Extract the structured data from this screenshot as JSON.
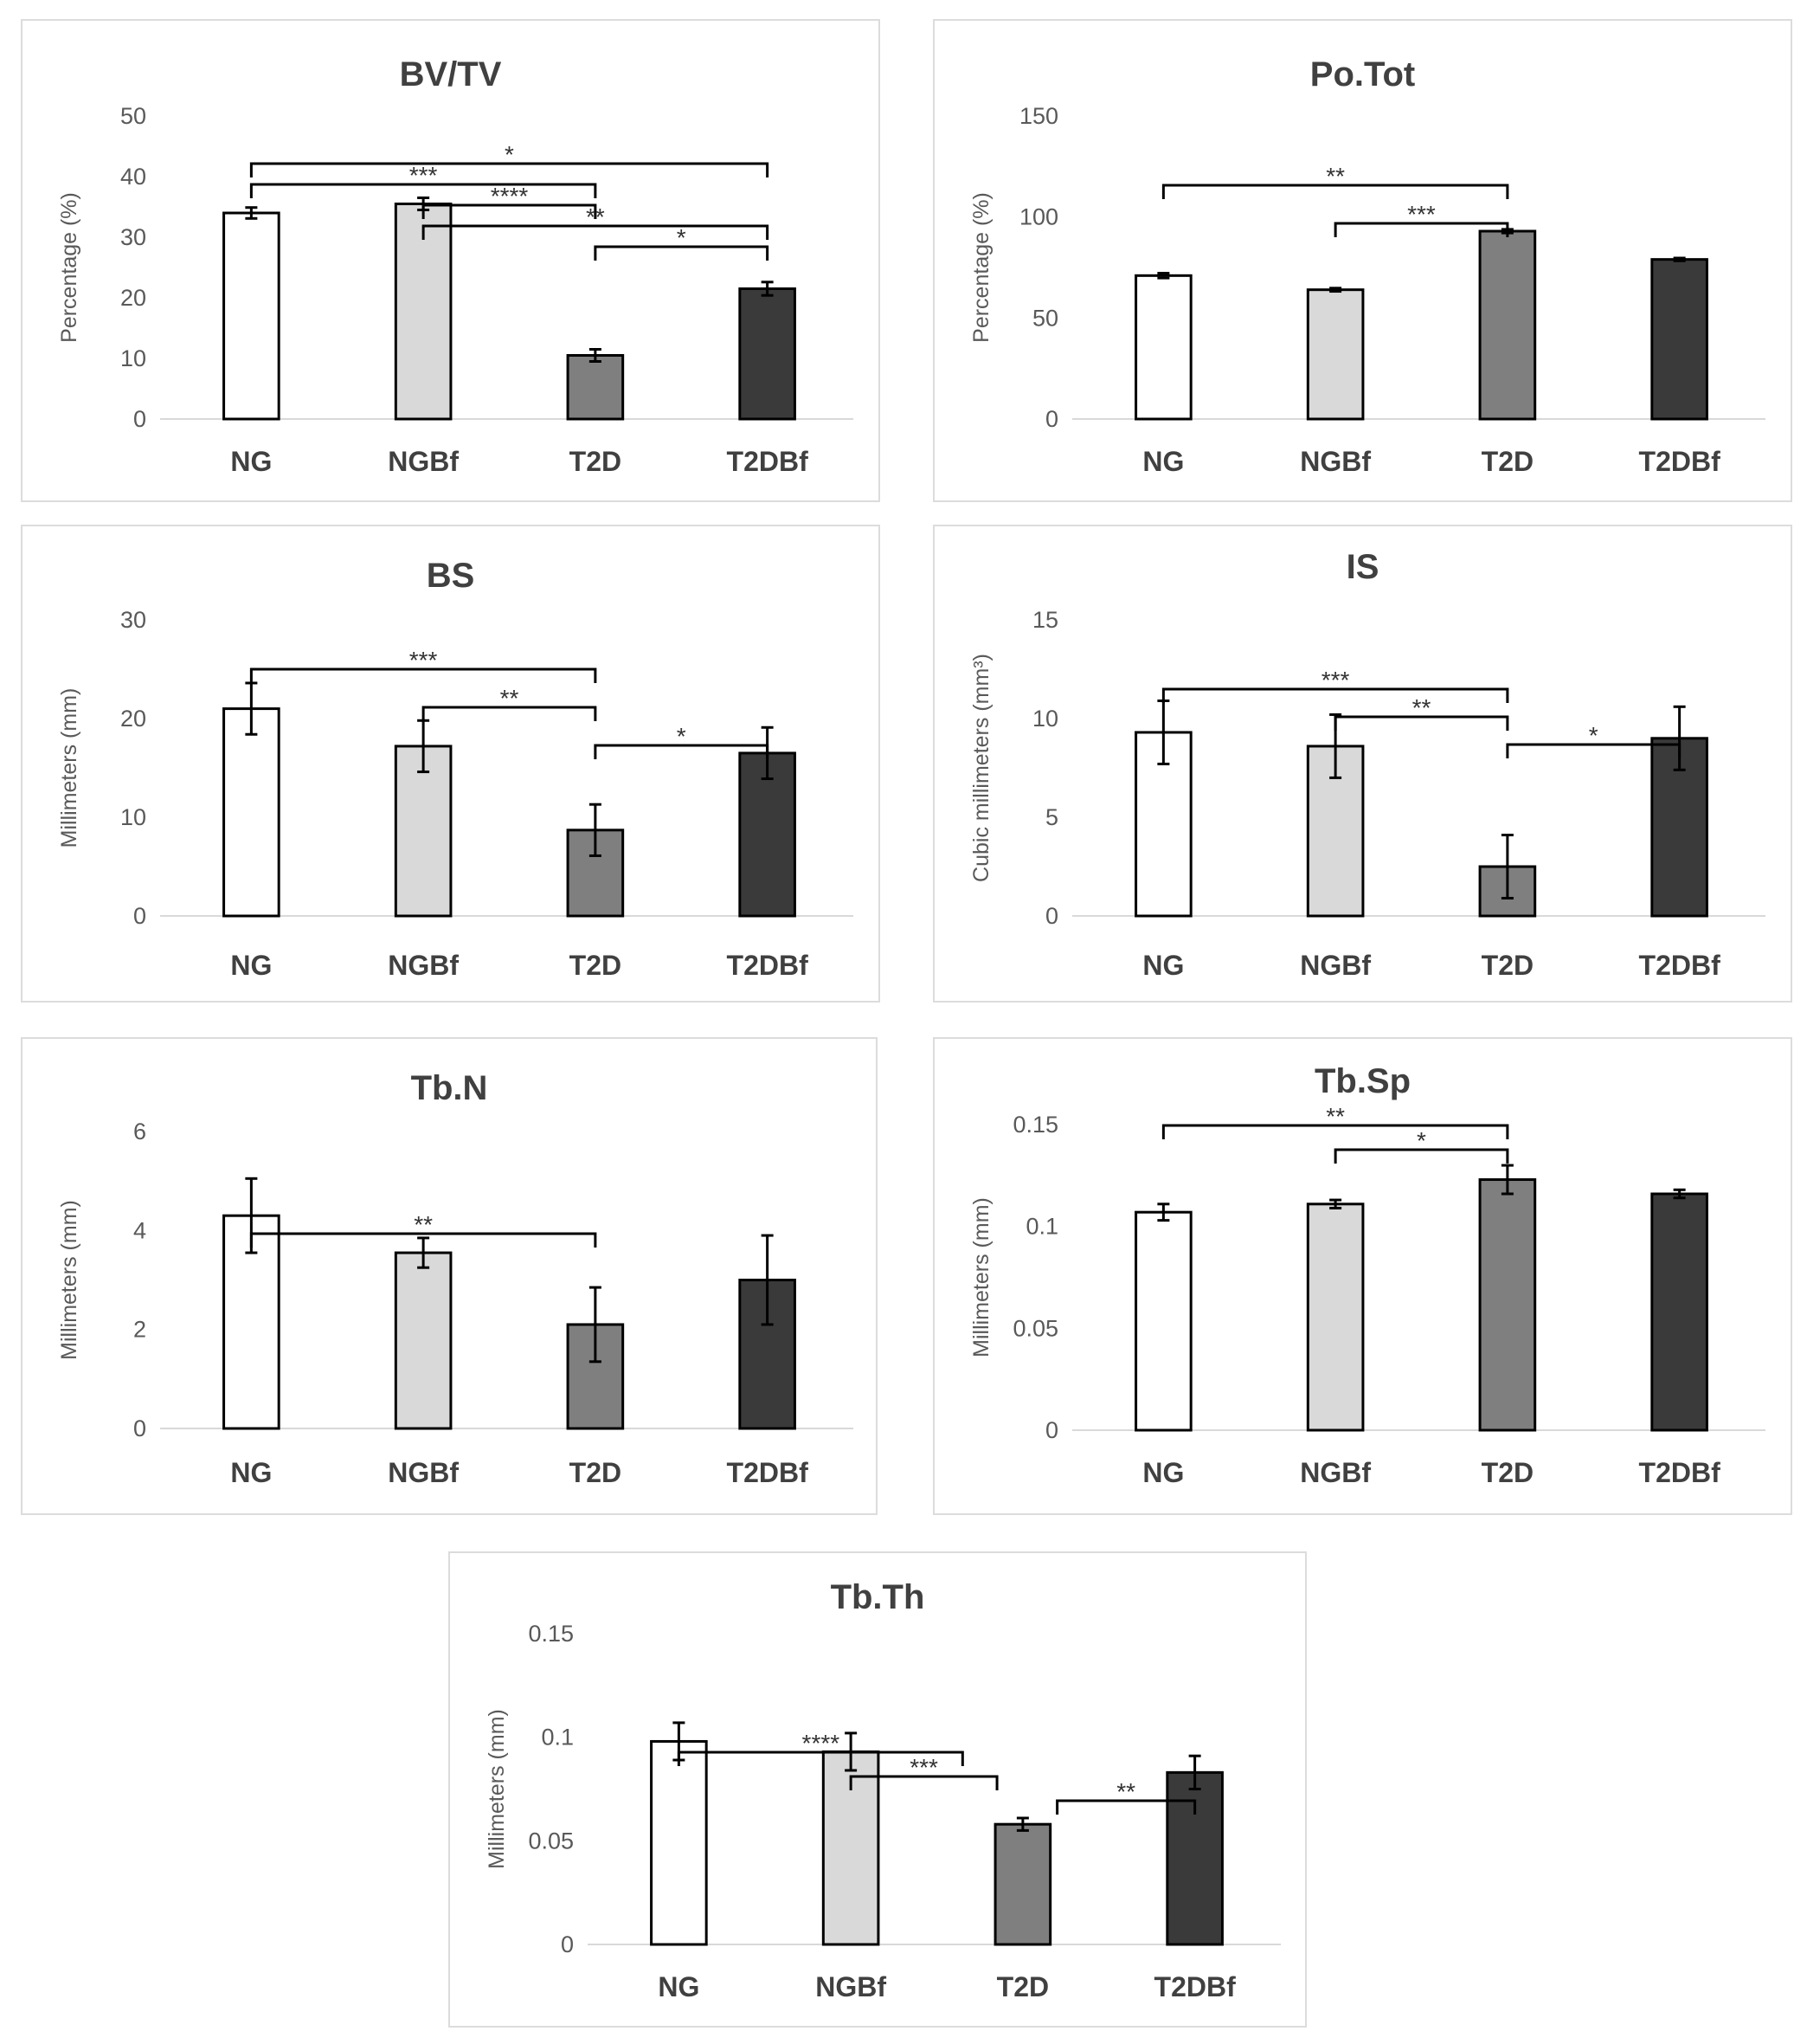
{
  "colors": {
    "NG": "#ffffff",
    "NGBf": "#d9d9d9",
    "T2D": "#7f7f7f",
    "T2DBf": "#3a3a3a",
    "axis": "#d9d9d9",
    "bar_edge": "#000000"
  },
  "chart_data": [
    {
      "type": "bar",
      "title": "BV/TV",
      "ylabel": "Percentage (%)",
      "categories": [
        "NG",
        "NGBf",
        "T2D",
        "T2DBf"
      ],
      "values": [
        34,
        35.5,
        10.5,
        21.5
      ],
      "errors": [
        0.9,
        1.0,
        1.0,
        1.1
      ],
      "ylim": [
        0,
        50
      ],
      "yticks": [
        "0",
        "10",
        "20",
        "30",
        "40",
        "50"
      ],
      "significance": [
        {
          "from": 0,
          "to": 3,
          "label": "*"
        },
        {
          "from": 0,
          "to": 2,
          "label": "***"
        },
        {
          "from": 1,
          "to": 2,
          "label": "****"
        },
        {
          "from": 1,
          "to": 3,
          "label": "**"
        },
        {
          "from": 2,
          "to": 3,
          "label": "*"
        }
      ]
    },
    {
      "type": "bar",
      "title": "Po.Tot",
      "ylabel": "Percentage (%)",
      "categories": [
        "NG",
        "NGBf",
        "T2D",
        "T2DBf"
      ],
      "values": [
        71,
        64,
        93,
        79
      ],
      "errors": [
        1.2,
        0.8,
        0.9,
        0.7
      ],
      "ylim": [
        0,
        150
      ],
      "yticks": [
        "0",
        "50",
        "100",
        "150"
      ],
      "significance": [
        {
          "from": 0,
          "to": 2,
          "label": "**"
        },
        {
          "from": 1,
          "to": 2,
          "label": "***"
        }
      ]
    },
    {
      "type": "bar",
      "title": "BS",
      "ylabel": "Millimeters (mm)",
      "categories": [
        "NG",
        "NGBf",
        "T2D",
        "T2DBf"
      ],
      "values": [
        21,
        17.2,
        8.7,
        16.5
      ],
      "errors": [
        2.6,
        2.6,
        2.6,
        2.6
      ],
      "ylim": [
        0,
        30
      ],
      "yticks": [
        "0",
        "10",
        "20",
        "30"
      ],
      "significance": [
        {
          "from": 0,
          "to": 2,
          "label": "***"
        },
        {
          "from": 1,
          "to": 2,
          "label": "**"
        },
        {
          "from": 2,
          "to": 3,
          "label": "*"
        }
      ]
    },
    {
      "type": "bar",
      "title": "IS",
      "ylabel": "Cubic millimeters (mm³)",
      "categories": [
        "NG",
        "NGBf",
        "T2D",
        "T2DBf"
      ],
      "values": [
        9.3,
        8.6,
        2.5,
        9.0
      ],
      "errors": [
        1.6,
        1.6,
        1.6,
        1.6
      ],
      "ylim": [
        0,
        15
      ],
      "yticks": [
        "0",
        "5",
        "10",
        "15"
      ],
      "significance": [
        {
          "from": 0,
          "to": 2,
          "label": "***"
        },
        {
          "from": 1,
          "to": 2,
          "label": "**"
        },
        {
          "from": 2,
          "to": 3,
          "label": "*"
        }
      ]
    },
    {
      "type": "bar",
      "title": "Tb.N",
      "ylabel": "Millimeters (mm)",
      "categories": [
        "NG",
        "NGBf",
        "T2D",
        "T2DBf"
      ],
      "values": [
        4.3,
        3.55,
        2.1,
        3.0
      ],
      "errors": [
        0.75,
        0.3,
        0.75,
        0.9
      ],
      "ylim": [
        0,
        6
      ],
      "yticks": [
        "0",
        "2",
        "4",
        "6"
      ],
      "significance": [
        {
          "from": 0,
          "to": 2,
          "label": "**"
        }
      ]
    },
    {
      "type": "bar",
      "title": "Tb.Sp",
      "ylabel": "Millimeters (mm)",
      "categories": [
        "NG",
        "NGBf",
        "T2D",
        "T2DBf"
      ],
      "values": [
        0.107,
        0.111,
        0.123,
        0.116
      ],
      "errors": [
        0.004,
        0.002,
        0.007,
        0.002
      ],
      "ylim": [
        0,
        0.15
      ],
      "yticks": [
        "0",
        "0.05",
        "0.1",
        "0.15"
      ],
      "significance": [
        {
          "from": 0,
          "to": 2,
          "label": "**"
        },
        {
          "from": 1,
          "to": 2,
          "label": "*"
        }
      ]
    },
    {
      "type": "bar",
      "title": "Tb.Th",
      "ylabel": "Millimeters (mm)",
      "categories": [
        "NG",
        "NGBf",
        "T2D",
        "T2DBf"
      ],
      "values": [
        0.098,
        0.093,
        0.058,
        0.083
      ],
      "errors": [
        0.009,
        0.009,
        0.003,
        0.008
      ],
      "ylim": [
        0,
        0.15
      ],
      "yticks": [
        "0",
        "0.05",
        "0.1",
        "0.15"
      ],
      "significance": [
        {
          "from": 0,
          "to": 1.65,
          "label": "****"
        },
        {
          "from": 1,
          "to": 1.85,
          "label": "***"
        },
        {
          "from": 2.2,
          "to": 3,
          "label": "**"
        }
      ]
    }
  ]
}
